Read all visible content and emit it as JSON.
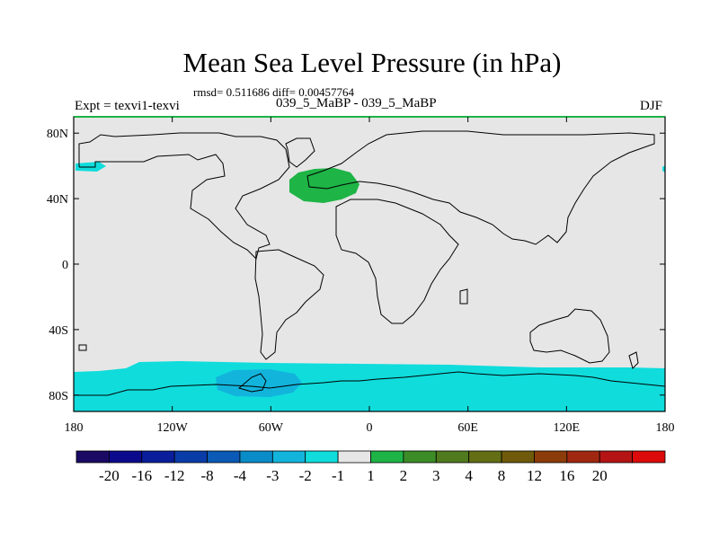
{
  "title": "Mean Sea Level Pressure (in hPa)",
  "stats": "rmsd= 0.511686 diff= 0.00457764",
  "left_label": "Expt = texvi1-texvi",
  "center_label": "039_5_MaBP - 039_5_MaBP",
  "right_label": "DJF",
  "lat_ticks": [
    {
      "value": 80,
      "label": "80N"
    },
    {
      "value": 40,
      "label": "40N"
    },
    {
      "value": 0,
      "label": "0"
    },
    {
      "value": -40,
      "label": "40S"
    },
    {
      "value": -80,
      "label": "80S"
    }
  ],
  "lon_ticks": [
    {
      "value": -180,
      "label": "180"
    },
    {
      "value": -120,
      "label": "120W"
    },
    {
      "value": -60,
      "label": "60W"
    },
    {
      "value": 0,
      "label": "0"
    },
    {
      "value": 60,
      "label": "60E"
    },
    {
      "value": 120,
      "label": "120E"
    },
    {
      "value": 180,
      "label": "180"
    }
  ],
  "colorbar": {
    "colors": [
      "#1a0a64",
      "#0c0a8c",
      "#0a1e9c",
      "#0a3ca8",
      "#0a5ab6",
      "#0a8cc8",
      "#12b4dc",
      "#10dcdc",
      "#e6e6e6",
      "#1eb446",
      "#3c8c28",
      "#507a1e",
      "#646e14",
      "#6e5a0a",
      "#8c3c0a",
      "#a02810",
      "#b41414",
      "#dc0a0a"
    ],
    "labels": [
      "-20",
      "-16",
      "-12",
      "-8",
      "-4",
      "-3",
      "-2",
      "-1",
      "1",
      "2",
      "3",
      "4",
      "8",
      "12",
      "16",
      "20"
    ]
  },
  "colors": {
    "background": "#e6e6e6",
    "positive_anomaly": "#1eb446",
    "negative_light": "#10dcdc",
    "negative_mid": "#12b4dc",
    "coastline": "#000000"
  }
}
